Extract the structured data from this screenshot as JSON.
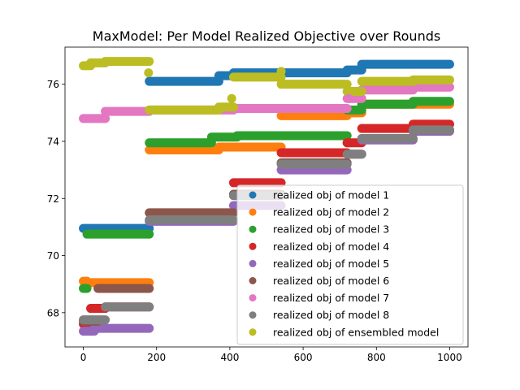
{
  "chart_data": {
    "type": "scatter",
    "title": "MaxModel: Per Model Realized Objective over Rounds",
    "xlabel": "",
    "ylabel": "",
    "xlim": [
      -50,
      1050
    ],
    "ylim": [
      66.8,
      77.3
    ],
    "xticks": [
      0,
      200,
      400,
      600,
      800,
      1000
    ],
    "yticks": [
      68,
      70,
      72,
      74,
      76
    ],
    "grid": false,
    "legend_position": "lower-right",
    "series": [
      {
        "name": "realized obj of model 1",
        "color": "#1f77b4",
        "segments": [
          [
            0,
            180,
            70.95
          ],
          [
            180,
            370,
            76.1
          ],
          [
            370,
            410,
            76.3
          ],
          [
            410,
            720,
            76.4
          ],
          [
            720,
            760,
            76.5
          ],
          [
            760,
            1000,
            76.7
          ]
        ]
      },
      {
        "name": "realized obj of model 2",
        "color": "#ff7f0e",
        "segments": [
          [
            0,
            10,
            69.1
          ],
          [
            10,
            180,
            69.05
          ],
          [
            180,
            370,
            73.7
          ],
          [
            370,
            540,
            73.8
          ],
          [
            540,
            720,
            74.9
          ],
          [
            720,
            760,
            75.0
          ],
          [
            760,
            1000,
            75.3
          ]
        ]
      },
      {
        "name": "realized obj of model 3",
        "color": "#2ca02c",
        "segments": [
          [
            0,
            10,
            68.85
          ],
          [
            10,
            180,
            70.75
          ],
          [
            180,
            350,
            73.95
          ],
          [
            350,
            420,
            74.15
          ],
          [
            420,
            720,
            74.2
          ],
          [
            720,
            760,
            75.1
          ],
          [
            760,
            900,
            75.3
          ],
          [
            900,
            1000,
            75.4
          ]
        ]
      },
      {
        "name": "realized obj of model 4",
        "color": "#d62728",
        "segments": [
          [
            0,
            20,
            67.6
          ],
          [
            20,
            60,
            68.15
          ],
          [
            60,
            180,
            68.2
          ],
          [
            410,
            540,
            72.55
          ],
          [
            540,
            720,
            73.6
          ],
          [
            720,
            760,
            73.95
          ],
          [
            760,
            900,
            74.45
          ],
          [
            900,
            1000,
            74.6
          ]
        ]
      },
      {
        "name": "realized obj of model 5",
        "color": "#9467bd",
        "segments": [
          [
            0,
            30,
            67.35
          ],
          [
            30,
            180,
            67.45
          ],
          [
            180,
            410,
            71.2
          ],
          [
            410,
            540,
            71.75
          ],
          [
            540,
            700,
            73.0
          ],
          [
            700,
            720,
            73.0
          ],
          [
            760,
            900,
            74.05
          ],
          [
            900,
            1000,
            74.35
          ]
        ]
      },
      {
        "name": "realized obj of model 6",
        "color": "#8c564b",
        "segments": [
          [
            0,
            40,
            67.7
          ],
          [
            40,
            180,
            68.85
          ],
          [
            180,
            410,
            71.5
          ],
          [
            410,
            540,
            72.15
          ],
          [
            540,
            720,
            73.25
          ],
          [
            720,
            760,
            73.55
          ],
          [
            760,
            900,
            74.1
          ],
          [
            900,
            1000,
            74.4
          ]
        ]
      },
      {
        "name": "realized obj of model 7",
        "color": "#e377c2",
        "segments": [
          [
            0,
            60,
            74.8
          ],
          [
            60,
            180,
            75.05
          ],
          [
            180,
            410,
            75.1
          ],
          [
            410,
            720,
            75.15
          ],
          [
            720,
            760,
            75.5
          ],
          [
            760,
            900,
            75.8
          ],
          [
            900,
            1000,
            75.9
          ]
        ]
      },
      {
        "name": "realized obj of model 8",
        "color": "#7f7f7f",
        "segments": [
          [
            0,
            60,
            67.75
          ],
          [
            60,
            180,
            68.2
          ],
          [
            180,
            410,
            71.25
          ],
          [
            410,
            540,
            72.1
          ],
          [
            540,
            720,
            73.2
          ],
          [
            720,
            760,
            73.55
          ],
          [
            760,
            900,
            74.1
          ],
          [
            900,
            1000,
            74.4
          ]
        ]
      },
      {
        "name": "realized obj of ensembled model",
        "color": "#bcbd22",
        "segments": [
          [
            0,
            20,
            76.65
          ],
          [
            20,
            60,
            76.75
          ],
          [
            60,
            180,
            76.8
          ],
          [
            180,
            370,
            75.1
          ],
          [
            370,
            410,
            75.2
          ],
          [
            410,
            540,
            76.25
          ],
          [
            540,
            720,
            76.0
          ],
          [
            720,
            760,
            75.75
          ],
          [
            760,
            900,
            76.1
          ],
          [
            900,
            1000,
            76.15
          ]
        ]
      }
    ],
    "extra_points": [
      {
        "series": 8,
        "x": 178,
        "y": 76.4
      },
      {
        "series": 8,
        "x": 405,
        "y": 75.5
      },
      {
        "series": 8,
        "x": 540,
        "y": 76.45
      },
      {
        "series": 6,
        "x": 725,
        "y": 75.5
      },
      {
        "series": 3,
        "x": 720,
        "y": 73.95
      }
    ]
  }
}
